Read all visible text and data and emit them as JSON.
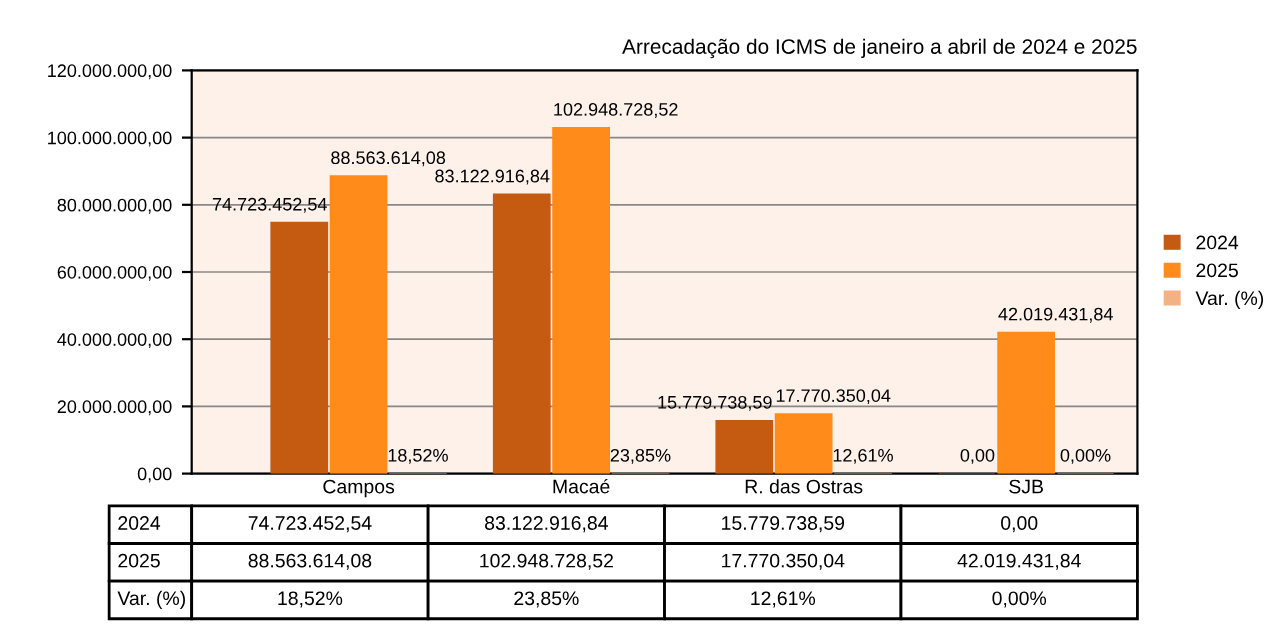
{
  "chart_data": {
    "type": "bar",
    "title": "Arrecadação do ICMS de janeiro a abril de 2024 e 2025",
    "categories": [
      "Campos",
      "Macaé",
      "R. das Ostras",
      "SJB"
    ],
    "series": [
      {
        "name": "2024",
        "color": "#c55a11",
        "values": [
          74723452.54,
          83122916.84,
          15779738.59,
          0.0
        ],
        "value_labels": [
          "74.723.452,54",
          "83.122.916,84",
          "15.779.738,59",
          "0,00"
        ]
      },
      {
        "name": "2025",
        "color": "#ff8c1a",
        "values": [
          88563614.08,
          102948728.52,
          17770350.04,
          42019431.84
        ],
        "value_labels": [
          "88.563.614,08",
          "102.948.728,52",
          "17.770.350,04",
          "42.019.431,84"
        ]
      },
      {
        "name": "Var. (%)",
        "color": "#f4b183",
        "values": [
          18.52,
          23.85,
          12.61,
          0.0
        ],
        "value_labels": [
          "18,52%",
          "23,85%",
          "12,61%",
          "0,00%"
        ]
      }
    ],
    "ylim": [
      0,
      120000000
    ],
    "yticks": [
      {
        "value": 0,
        "label": "0,00"
      },
      {
        "value": 20000000,
        "label": "20.000.000,00"
      },
      {
        "value": 40000000,
        "label": "40.000.000,00"
      },
      {
        "value": 60000000,
        "label": "60.000.000,00"
      },
      {
        "value": 80000000,
        "label": "80.000.000,00"
      },
      {
        "value": 100000000,
        "label": "100.000.000,00"
      },
      {
        "value": 120000000,
        "label": "120.000.000,00"
      }
    ],
    "grid": "y",
    "legend": "right"
  }
}
